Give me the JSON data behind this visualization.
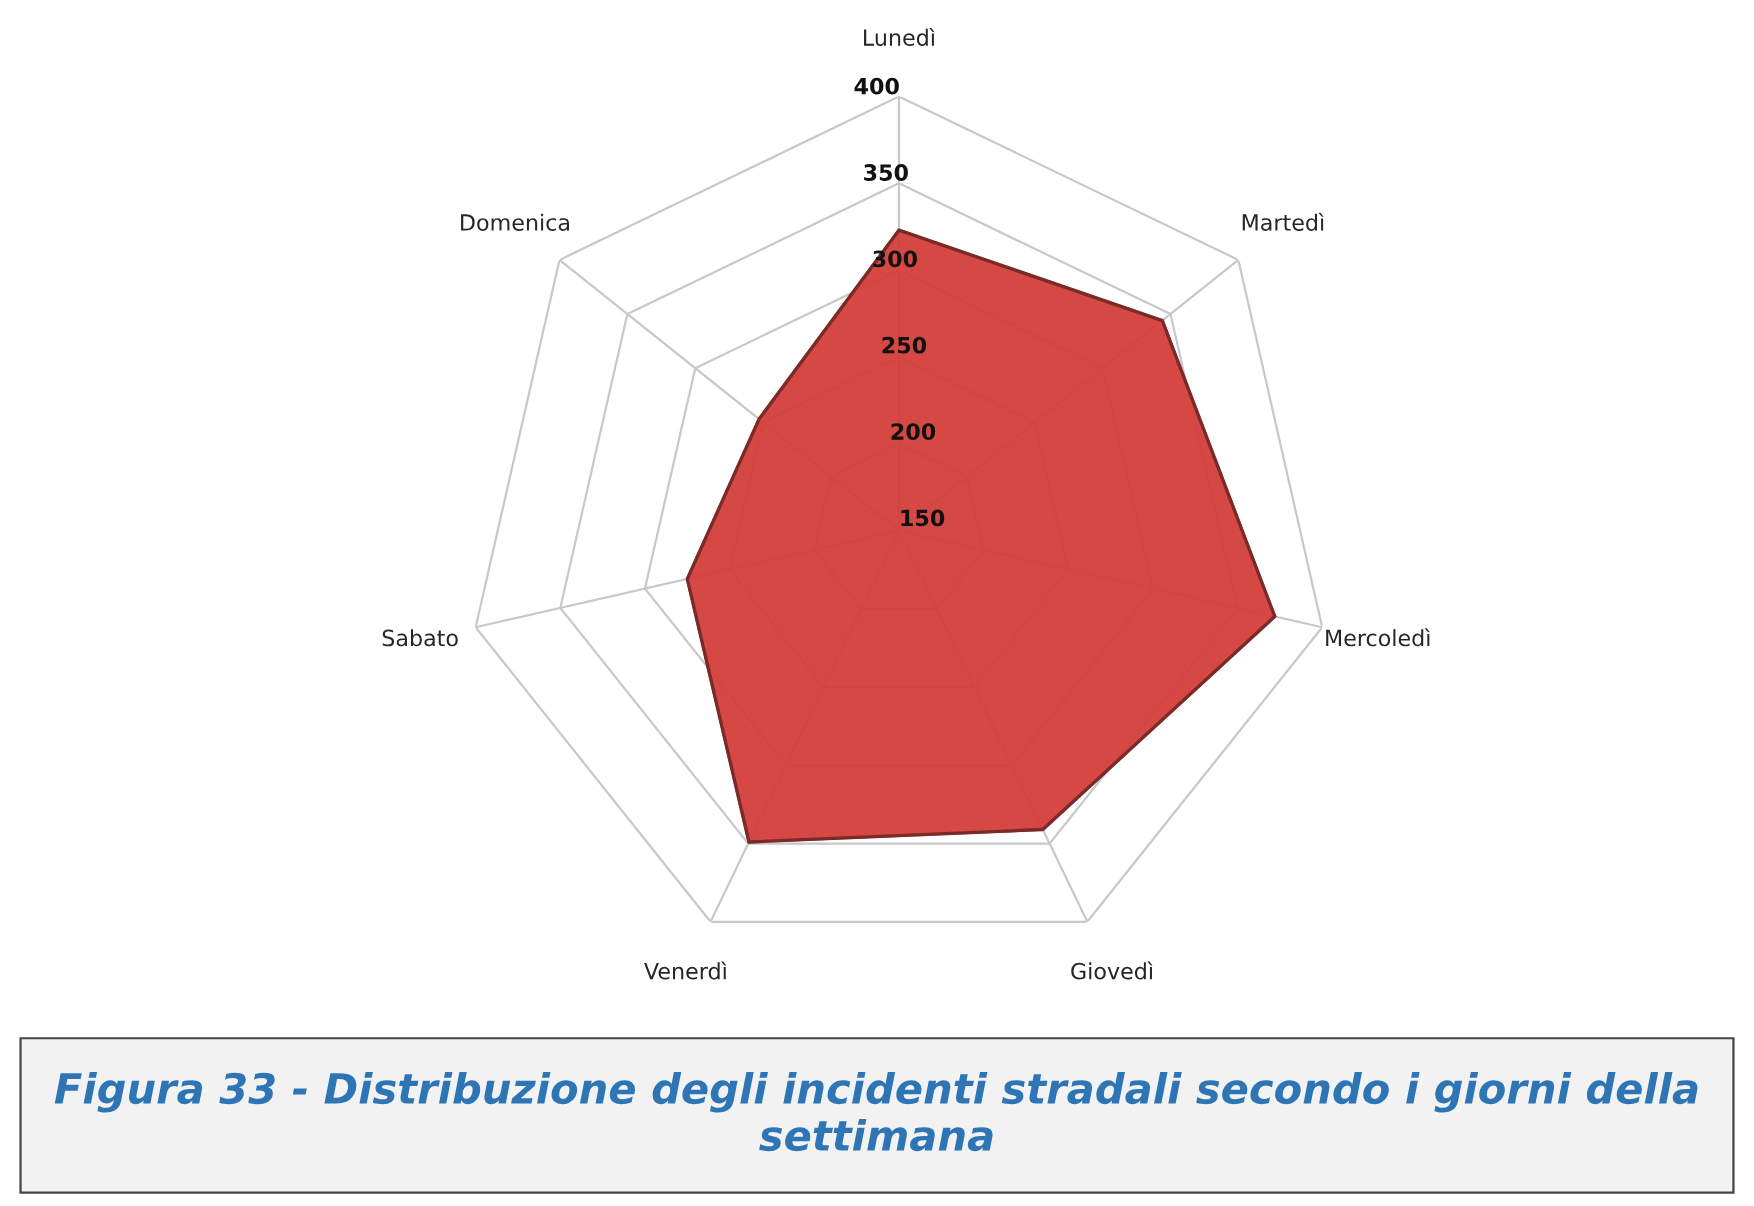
{
  "chart_data": {
    "type": "radar",
    "categories": [
      "Lunedì",
      "Martedì",
      "Mercoledì",
      "Giovedì",
      "Venerdì",
      "Sabato",
      "Domenica"
    ],
    "series": [
      {
        "color": "#d43f3a",
        "values": [
          323,
          344,
          372,
          341,
          349,
          275,
          253
        ]
      }
    ],
    "ylim": [
      150,
      400
    ],
    "yticks": [
      150,
      200,
      250,
      300,
      350,
      400
    ],
    "grid": true,
    "annotations": [
      "Figura 33 - Distribuzione degli incidenti stradali secondo i giorni della settimana"
    ]
  }
}
